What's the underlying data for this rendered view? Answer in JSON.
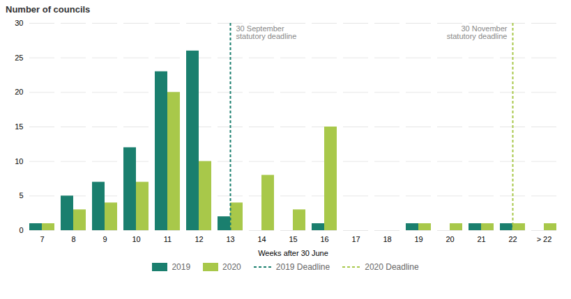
{
  "chart_data": {
    "type": "bar",
    "categories": [
      "7",
      "8",
      "9",
      "10",
      "11",
      "12",
      "13",
      "14",
      "15",
      "16",
      "17",
      "18",
      "19",
      "20",
      "21",
      "22",
      "> 22"
    ],
    "series": [
      {
        "name": "2019",
        "color": "#1a7f6e",
        "values": [
          1,
          5,
          7,
          12,
          23,
          26,
          2,
          0,
          0,
          1,
          0,
          0,
          1,
          0,
          1,
          1,
          0
        ]
      },
      {
        "name": "2020",
        "color": "#a8c84a",
        "values": [
          1,
          3,
          4,
          7,
          20,
          10,
          4,
          8,
          3,
          15,
          0,
          0,
          1,
          1,
          1,
          1,
          1
        ]
      }
    ],
    "reference_lines": [
      {
        "name": "2019 Deadline",
        "category": "13",
        "color": "#1a7f6e",
        "line_style": "dashed",
        "annotation": "30 September\nstatutory deadline"
      },
      {
        "name": "2020 Deadline",
        "category": "22",
        "color": "#a8c84a",
        "line_style": "dashed",
        "annotation": "30 November\nstatutory deadline"
      }
    ],
    "ylabel": "Number of councils",
    "xlabel": "Weeks after 30 June",
    "ylim": [
      0,
      30
    ],
    "yticks": [
      0,
      5,
      10,
      15,
      20,
      25,
      30
    ],
    "grid": true,
    "legend": "bottom"
  }
}
